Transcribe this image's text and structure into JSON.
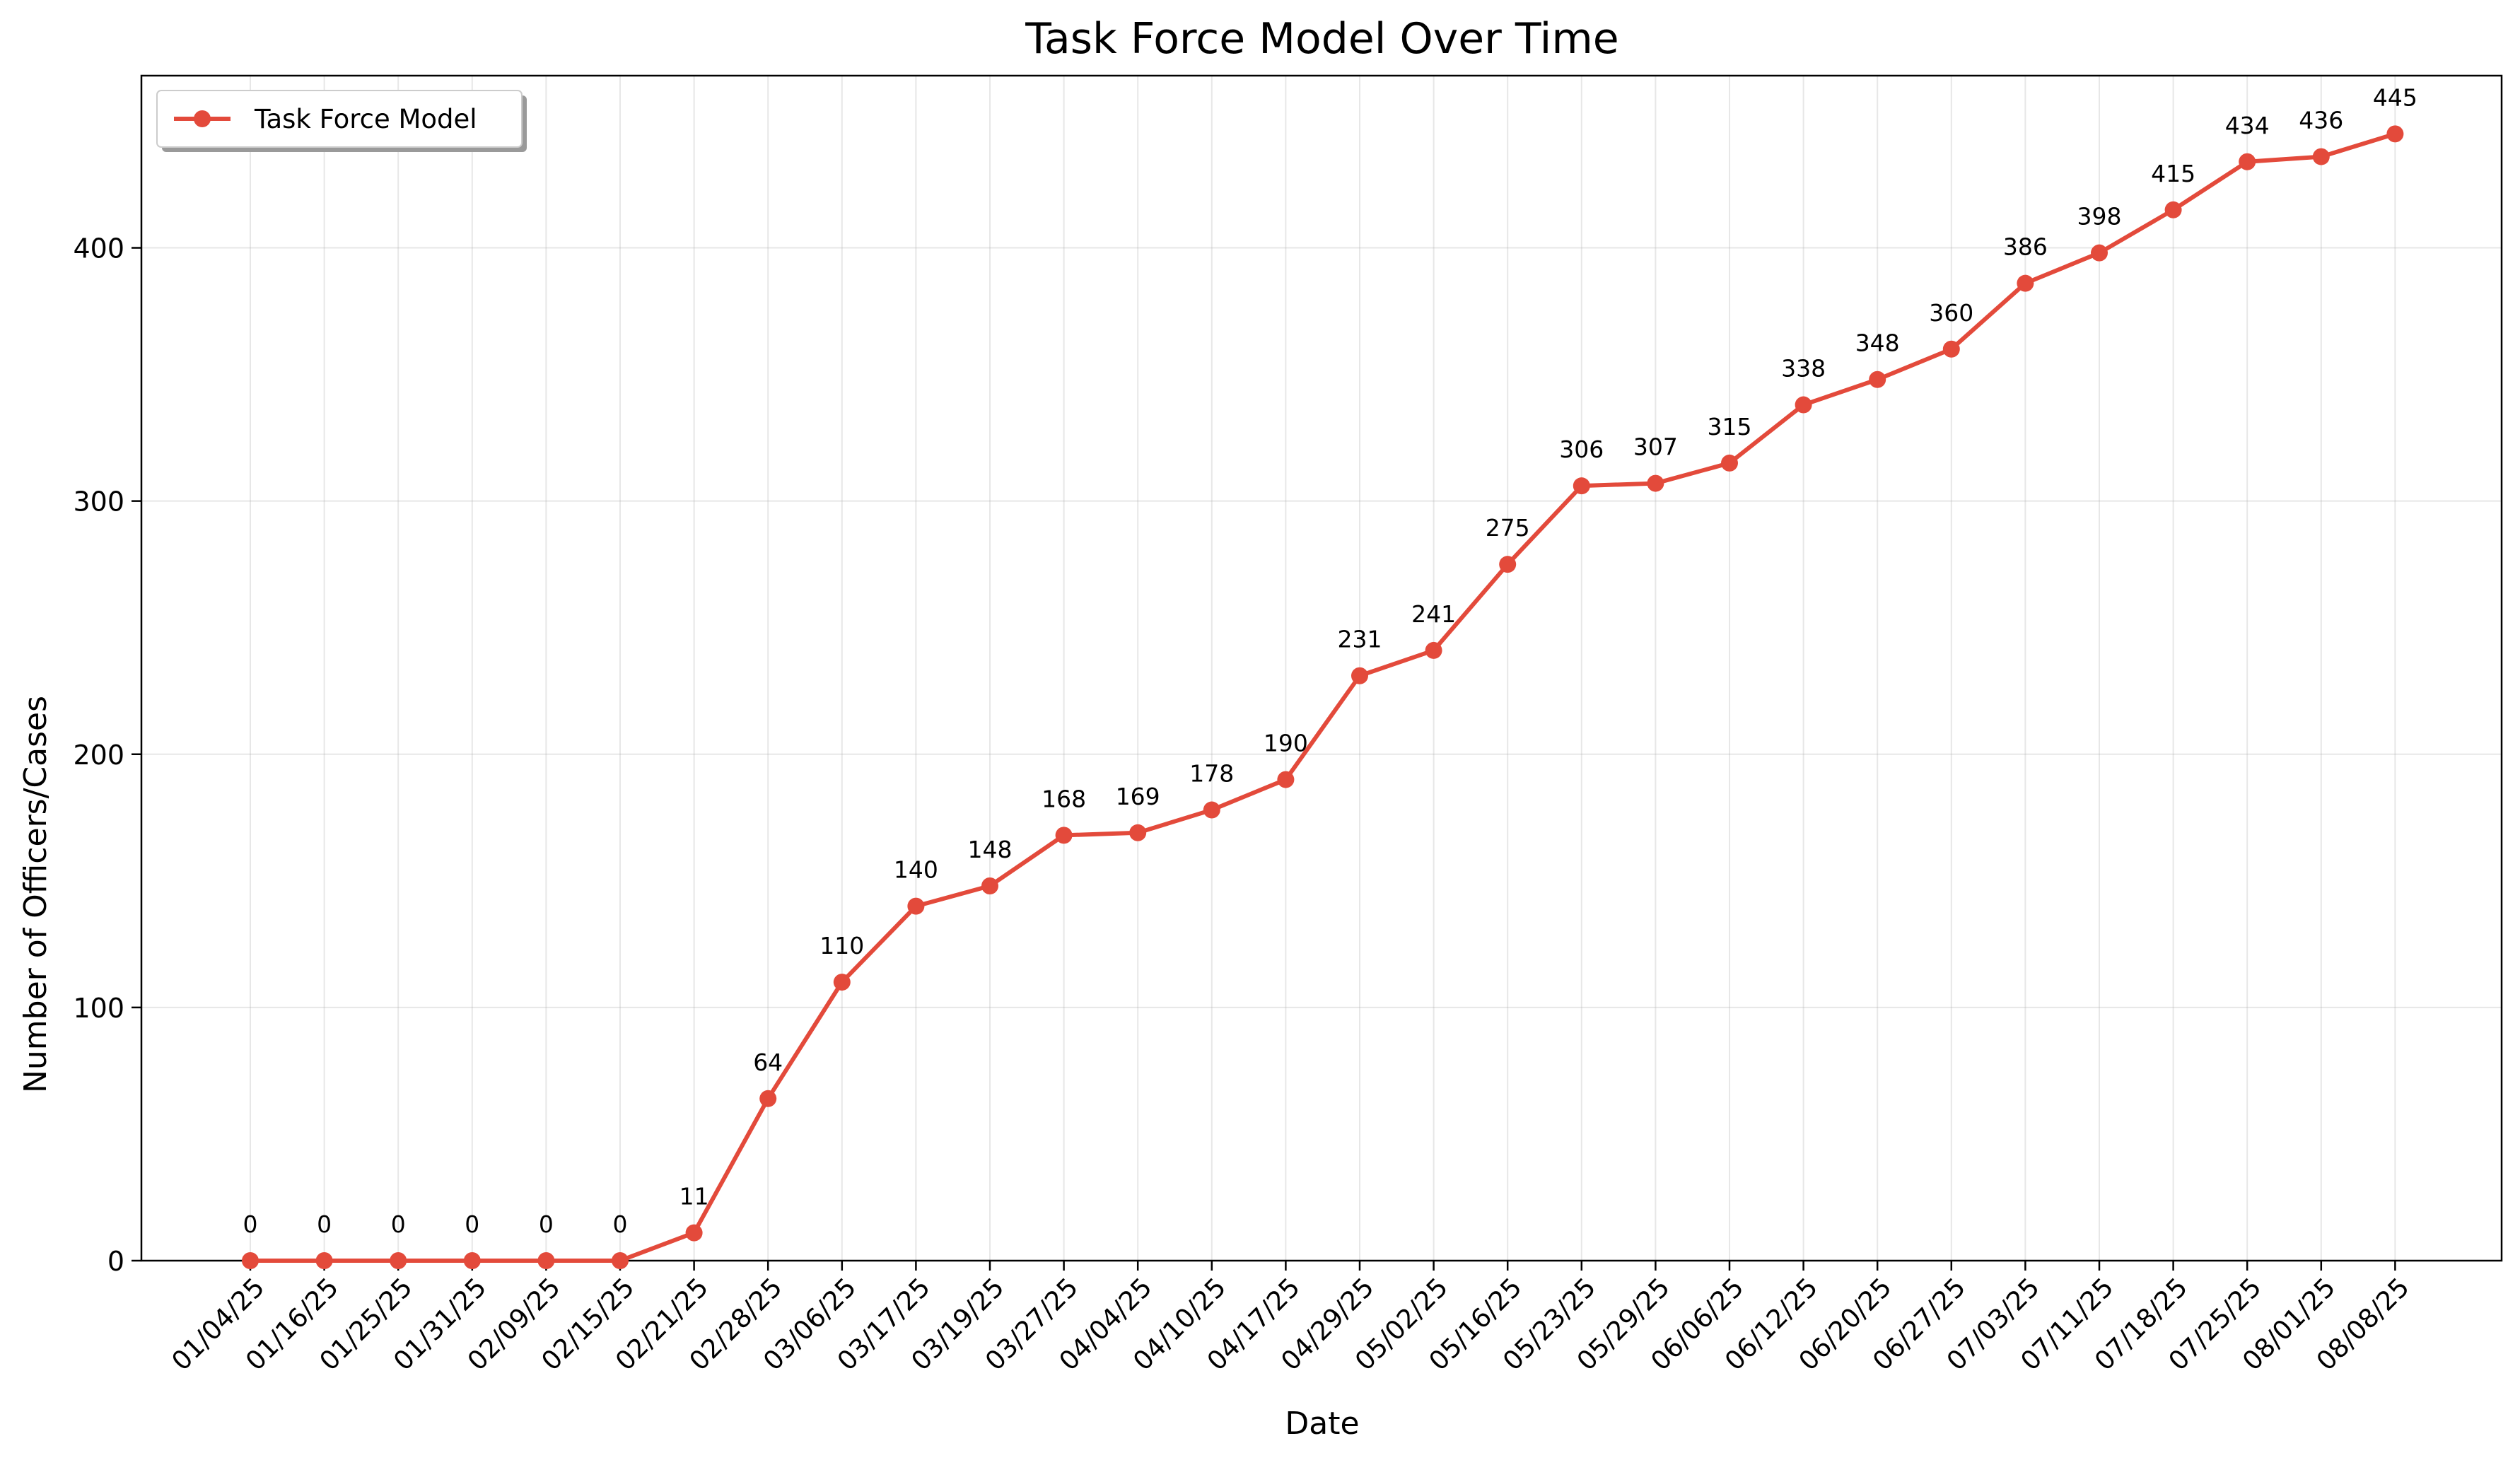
{
  "chart_data": {
    "type": "line",
    "title": "Task Force Model Over Time",
    "xlabel": "Date",
    "ylabel": "Number of Officers/Cases",
    "ylim": [
      0,
      468
    ],
    "yticks": [
      0,
      100,
      200,
      300,
      400
    ],
    "grid": true,
    "legend_position": "top-left",
    "categories": [
      "01/04/25",
      "01/16/25",
      "01/25/25",
      "01/31/25",
      "02/09/25",
      "02/15/25",
      "02/21/25",
      "02/28/25",
      "03/06/25",
      "03/17/25",
      "03/19/25",
      "03/27/25",
      "04/04/25",
      "04/10/25",
      "04/17/25",
      "04/29/25",
      "05/02/25",
      "05/16/25",
      "05/23/25",
      "05/29/25",
      "06/06/25",
      "06/12/25",
      "06/20/25",
      "06/27/25",
      "07/03/25",
      "07/11/25",
      "07/18/25",
      "07/25/25",
      "08/01/25",
      "08/08/25"
    ],
    "series": [
      {
        "name": "Task Force Model",
        "color": "#e34a3b",
        "values": [
          0,
          0,
          0,
          0,
          0,
          0,
          11,
          64,
          110,
          140,
          148,
          168,
          169,
          178,
          190,
          231,
          241,
          275,
          306,
          307,
          315,
          338,
          348,
          360,
          386,
          398,
          415,
          434,
          436,
          445
        ]
      }
    ]
  }
}
